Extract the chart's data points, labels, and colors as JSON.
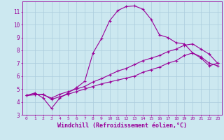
{
  "background_color": "#cce8f0",
  "grid_color": "#aaccdd",
  "line_color": "#990099",
  "xlabel": "Windchill (Refroidissement éolien,°C)",
  "xlabel_fontsize": 6.0,
  "ylabel_ticks": [
    3,
    4,
    5,
    6,
    7,
    8,
    9,
    10,
    11
  ],
  "xlim": [
    -0.5,
    23.5
  ],
  "ylim": [
    3.0,
    11.8
  ],
  "series1_x": [
    0,
    1,
    2,
    3,
    4,
    5,
    6,
    7,
    8,
    9,
    10,
    11,
    12,
    13,
    14,
    15,
    16,
    17,
    18,
    19,
    20,
    21,
    22,
    23
  ],
  "series1_y": [
    4.5,
    4.7,
    4.3,
    3.5,
    4.3,
    4.7,
    5.1,
    5.6,
    7.8,
    8.9,
    10.3,
    11.1,
    11.4,
    11.45,
    11.2,
    10.4,
    9.2,
    9.0,
    8.6,
    8.5,
    7.8,
    7.4,
    6.8,
    7.0
  ],
  "series2_x": [
    0,
    1,
    2,
    3,
    4,
    5,
    6,
    7,
    8,
    9,
    10,
    11,
    12,
    13,
    14,
    15,
    16,
    17,
    18,
    19,
    20,
    21,
    22,
    23
  ],
  "series2_y": [
    4.5,
    4.6,
    4.55,
    4.3,
    4.6,
    4.8,
    5.0,
    5.2,
    5.55,
    5.8,
    6.1,
    6.4,
    6.6,
    6.9,
    7.2,
    7.4,
    7.6,
    7.9,
    8.1,
    8.4,
    8.5,
    8.1,
    7.7,
    7.0
  ],
  "series3_x": [
    0,
    1,
    2,
    3,
    4,
    5,
    6,
    7,
    8,
    9,
    10,
    11,
    12,
    13,
    14,
    15,
    16,
    17,
    18,
    19,
    20,
    21,
    22,
    23
  ],
  "series3_y": [
    4.5,
    4.55,
    4.6,
    4.2,
    4.4,
    4.6,
    4.8,
    5.0,
    5.2,
    5.4,
    5.55,
    5.7,
    5.85,
    6.0,
    6.3,
    6.5,
    6.7,
    7.0,
    7.2,
    7.6,
    7.8,
    7.5,
    7.0,
    6.8
  ]
}
